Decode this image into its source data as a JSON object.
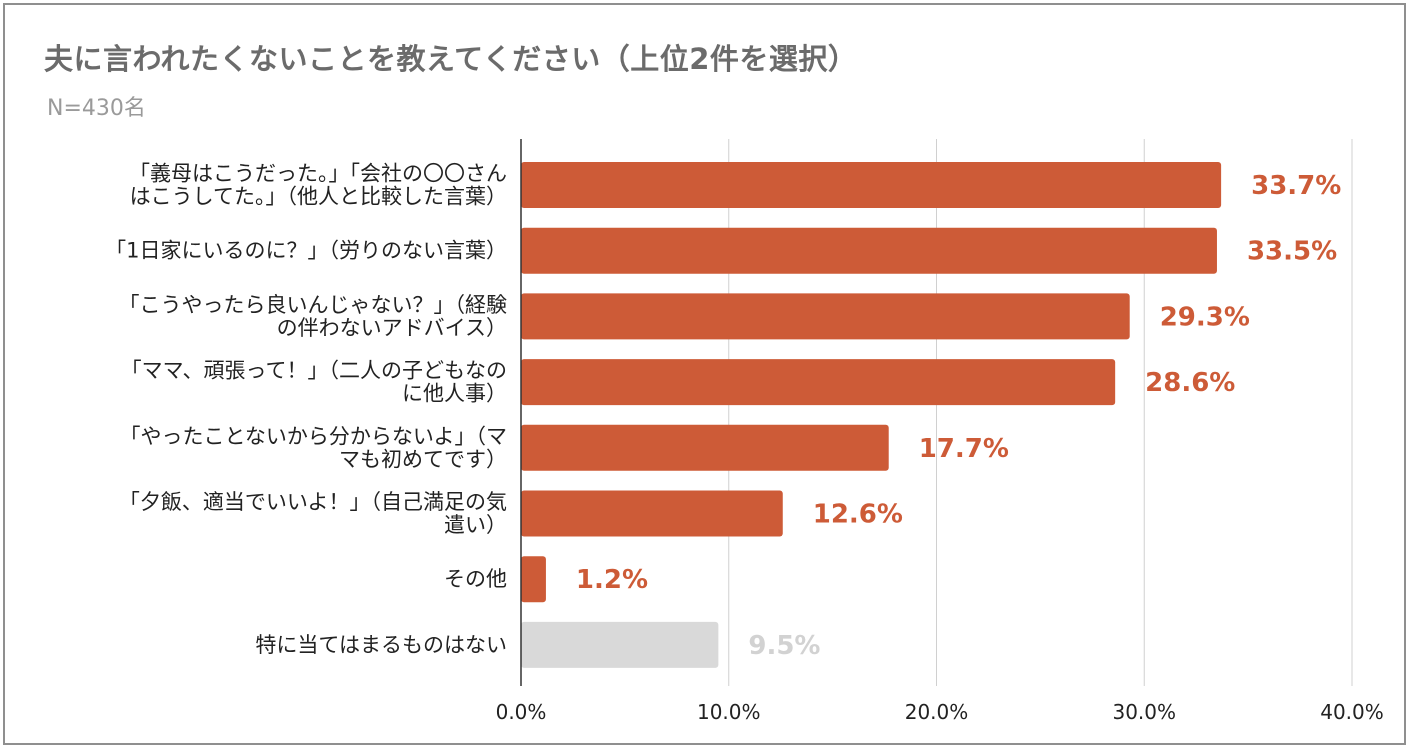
{
  "chart_data": {
    "type": "bar",
    "orientation": "horizontal",
    "title": "夫に言われたくないことを教えてください（上位2件を選択）",
    "subtitle": "N=430名",
    "categories": [
      [
        "「義母はこうだった。」「会社の〇〇さん",
        "はこうしてた。」（他人と比較した言葉）"
      ],
      [
        "「1日家にいるのに？」（労りのない言葉）"
      ],
      [
        "「こうやったら良いんじゃない？」（経験",
        "の伴わないアドバイス）"
      ],
      [
        "「ママ、頑張って！」（二人の子どもなの",
        "に他人事）"
      ],
      [
        "「やったことないから分からないよ」（マ",
        "マも初めてです）"
      ],
      [
        "「夕飯、適当でいいよ！」（自己満足の気",
        "遣い）"
      ],
      [
        "その他"
      ],
      [
        "特に当てはまるものはない"
      ]
    ],
    "values": [
      33.7,
      33.5,
      29.3,
      28.6,
      17.7,
      12.6,
      1.2,
      9.5
    ],
    "value_labels": [
      "33.7%",
      "33.5%",
      "29.3%",
      "28.6%",
      "17.7%",
      "12.6%",
      "1.2%",
      "9.5%"
    ],
    "bar_colors": [
      "#cd5b37",
      "#cd5b37",
      "#cd5b37",
      "#cd5b37",
      "#cd5b37",
      "#cd5b37",
      "#cd5b37",
      "#d9d9d9"
    ],
    "label_colors": [
      "#cd5b37",
      "#cd5b37",
      "#cd5b37",
      "#cd5b37",
      "#cd5b37",
      "#cd5b37",
      "#cd5b37",
      "#d2d2d2"
    ],
    "xlim": [
      0,
      40
    ],
    "xticks": [
      0,
      10,
      20,
      30,
      40
    ],
    "xtick_labels": [
      "0.0%",
      "10.0%",
      "20.0%",
      "30.0%",
      "40.0%"
    ],
    "grid": true,
    "legend": "none"
  }
}
